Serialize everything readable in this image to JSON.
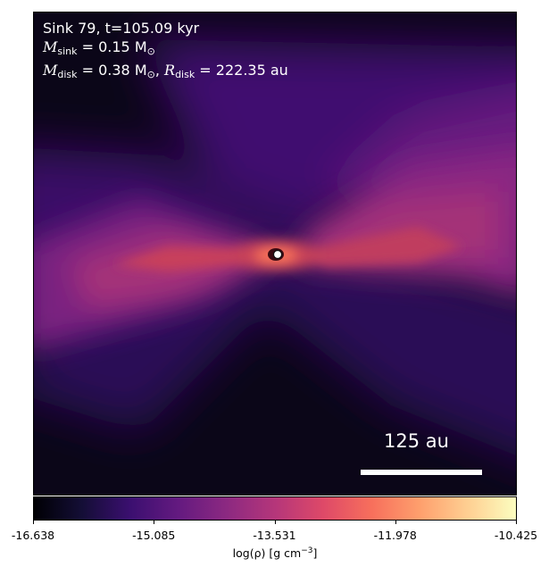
{
  "annotation": {
    "line1": "Sink 79, t=105.09 kyr",
    "m_sink_symbol": "M",
    "m_sink_sub": "sink",
    "m_sink_value": " = 0.15 M",
    "sun_sub": "⊙",
    "m_disk_symbol": "M",
    "m_disk_sub": "disk",
    "m_disk_value": " = 0.38 M",
    "separator": ", ",
    "r_disk_symbol": "R",
    "r_disk_sub": "disk",
    "r_disk_value": " = 222.35 au"
  },
  "scale_bar": {
    "label": "125 au"
  },
  "colorbar": {
    "ticks": [
      "-16.638",
      "-15.085",
      "-13.531",
      "-11.978",
      "-10.425"
    ],
    "label_prefix": "log(ρ) [g cm",
    "label_exp": "−3",
    "label_suffix": "]",
    "colormap": "inferno-like",
    "colors": {
      "c0": "#000004",
      "c1": "#140e36",
      "c2": "#3b0f70",
      "c3": "#641a80",
      "c4": "#8c2981",
      "c5": "#b5367a",
      "c6": "#de4968",
      "c7": "#f76f5c",
      "c8": "#fe9f6d",
      "c9": "#fecf92",
      "c10": "#fcfdbf"
    }
  },
  "sink_marker": {
    "icon": "sink-circle-icon"
  }
}
